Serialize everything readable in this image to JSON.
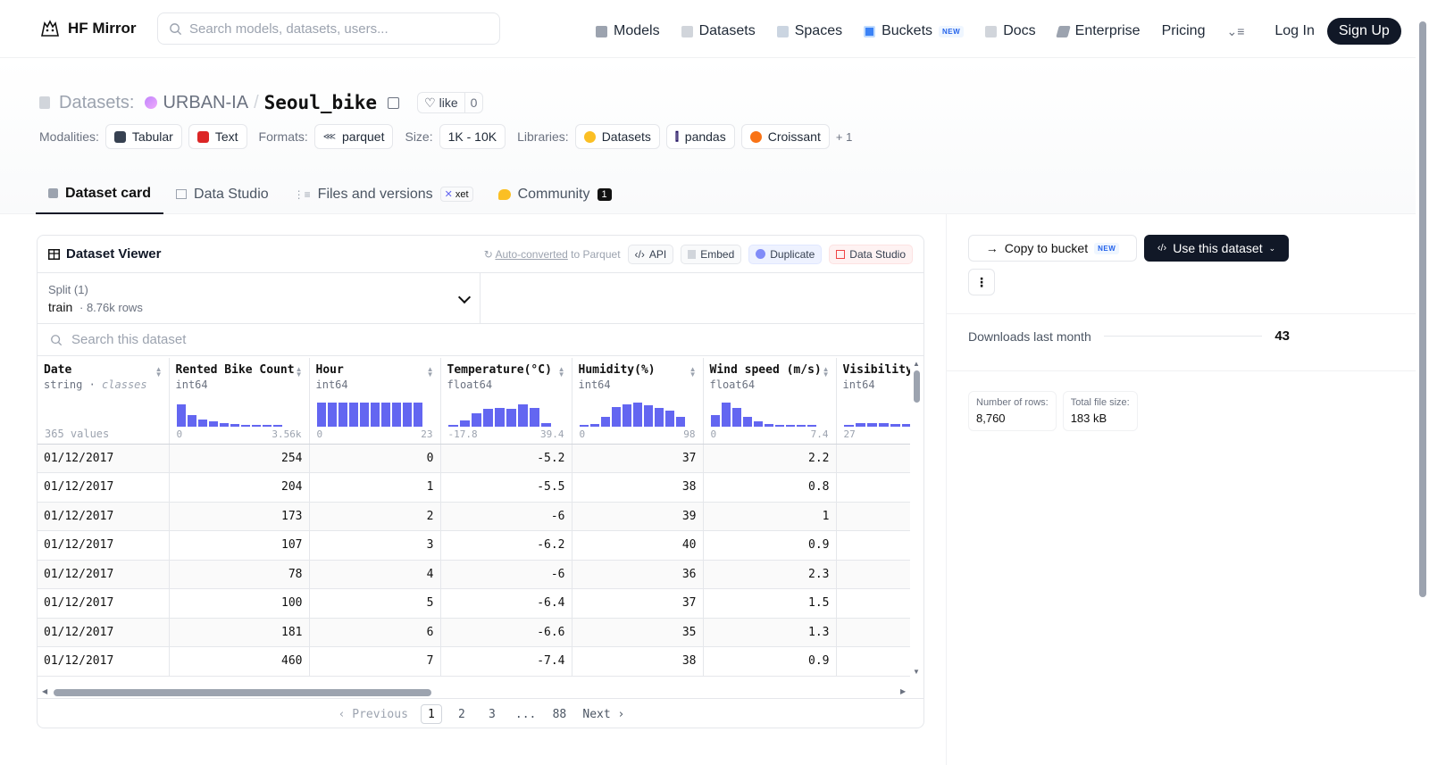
{
  "nav": {
    "brand": "HF Mirror",
    "search_placeholder": "Search models, datasets, users...",
    "links": [
      {
        "label": "Models",
        "icon": "cube-icon"
      },
      {
        "label": "Datasets",
        "icon": "database-icon"
      },
      {
        "label": "Spaces",
        "icon": "grid-icon"
      },
      {
        "label": "Buckets",
        "icon": "bucket-icon",
        "badge": "NEW"
      },
      {
        "label": "Docs",
        "icon": "book-icon"
      },
      {
        "label": "Enterprise",
        "icon": "enterprise-icon"
      },
      {
        "label": "Pricing"
      }
    ],
    "login": "Log In",
    "signup": "Sign Up"
  },
  "header": {
    "type_label": "Datasets:",
    "org": "URBAN-IA",
    "separator": "/",
    "name": "Seoul_bike",
    "like_label": "like",
    "like_count": "0",
    "tags": {
      "modalities_label": "Modalities:",
      "modalities": [
        "Tabular",
        "Text"
      ],
      "formats_label": "Formats:",
      "formats": [
        "parquet"
      ],
      "size_label": "Size:",
      "size": "1K - 10K",
      "libraries_label": "Libraries:",
      "libraries": [
        "Datasets",
        "pandas",
        "Croissant"
      ],
      "more": "+ 1"
    }
  },
  "tabs": {
    "dataset_card": "Dataset card",
    "data_studio": "Data Studio",
    "files": "Files and versions",
    "xet": "xet",
    "community": "Community",
    "community_count": "1"
  },
  "viewer": {
    "title": "Dataset Viewer",
    "auto_converted": "Auto-converted",
    "to_parquet": " to Parquet",
    "api": "API",
    "embed": "Embed",
    "duplicate": "Duplicate",
    "data_studio": "Data Studio",
    "split_label": "Split (1)",
    "split_value": "train",
    "split_rows": "· 8.76k rows",
    "search_placeholder": "Search this dataset",
    "columns": [
      {
        "name": "Date",
        "type": "string",
        "subtype": "classes",
        "summary": "365 values"
      },
      {
        "name": "Rented Bike Count",
        "type": "int64",
        "min": "0",
        "max": "3.56k",
        "hist": [
          0.9,
          0.45,
          0.3,
          0.22,
          0.15,
          0.1,
          0.07,
          0.05,
          0.03,
          0.02
        ]
      },
      {
        "name": "Hour",
        "type": "int64",
        "min": "0",
        "max": "23",
        "hist": [
          0.95,
          0.95,
          0.95,
          0.95,
          0.95,
          0.95,
          0.95,
          0.95,
          0.95,
          0.95
        ]
      },
      {
        "name": "Temperature(°C)",
        "type": "float64",
        "min": "-17.8",
        "max": "39.4",
        "hist": [
          0.08,
          0.25,
          0.55,
          0.7,
          0.75,
          0.72,
          0.9,
          0.75,
          0.15
        ]
      },
      {
        "name": "Humidity(%)",
        "type": "int64",
        "min": "0",
        "max": "98",
        "hist": [
          0.03,
          0.1,
          0.4,
          0.8,
          0.9,
          0.95,
          0.85,
          0.75,
          0.65,
          0.4
        ]
      },
      {
        "name": "Wind speed (m/s)",
        "type": "float64",
        "min": "0",
        "max": "7.4",
        "hist": [
          0.45,
          0.95,
          0.75,
          0.4,
          0.2,
          0.1,
          0.05,
          0.03,
          0.02,
          0.01
        ]
      },
      {
        "name": "Visibility",
        "type": "int64",
        "min": "27",
        "hist": [
          0.08,
          0.15,
          0.15,
          0.13,
          0.12,
          0.12
        ]
      }
    ],
    "rows": [
      [
        "01/12/2017",
        "254",
        "0",
        "-5.2",
        "37",
        "2.2"
      ],
      [
        "01/12/2017",
        "204",
        "1",
        "-5.5",
        "38",
        "0.8"
      ],
      [
        "01/12/2017",
        "173",
        "2",
        "-6",
        "39",
        "1"
      ],
      [
        "01/12/2017",
        "107",
        "3",
        "-6.2",
        "40",
        "0.9"
      ],
      [
        "01/12/2017",
        "78",
        "4",
        "-6",
        "36",
        "2.3"
      ],
      [
        "01/12/2017",
        "100",
        "5",
        "-6.4",
        "37",
        "1.5"
      ],
      [
        "01/12/2017",
        "181",
        "6",
        "-6.6",
        "35",
        "1.3"
      ],
      [
        "01/12/2017",
        "460",
        "7",
        "-7.4",
        "38",
        "0.9"
      ]
    ],
    "pager": {
      "previous": "‹ Previous",
      "pages": [
        "1",
        "2",
        "3",
        "...",
        "88"
      ],
      "current": "1",
      "next": "Next ›"
    }
  },
  "sidebar": {
    "copy_bucket": "Copy to bucket",
    "copy_badge": "NEW",
    "use_dataset": "Use this dataset",
    "more": "⋮",
    "downloads_label": "Downloads last month",
    "downloads_value": "43",
    "rows_label": "Number of rows:",
    "rows_value": "8,760",
    "size_label": "Total file size:",
    "size_value": "183 kB"
  },
  "colors": {
    "accent": "#6366f1",
    "dark": "#111827"
  }
}
